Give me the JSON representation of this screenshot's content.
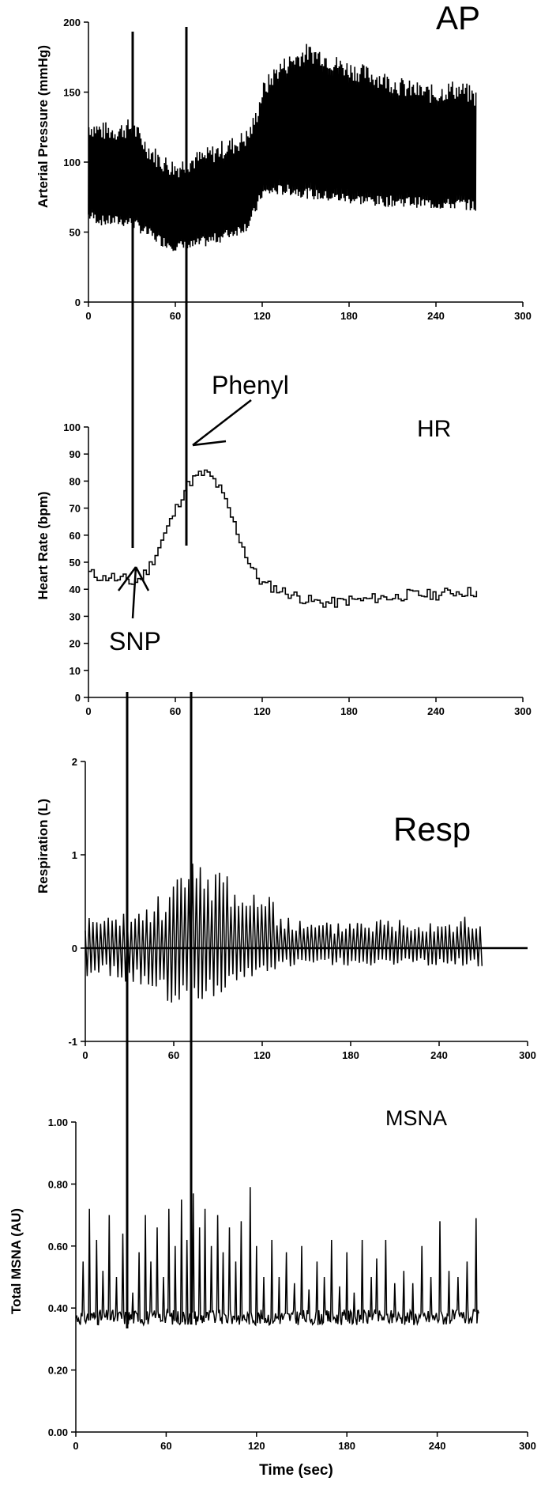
{
  "chart_data": [
    {
      "type": "line",
      "title": "AP",
      "ylabel": "Arterial Pressure (mmHg)",
      "xlabel": "",
      "xlim": [
        0,
        300
      ],
      "ylim": [
        0,
        200
      ],
      "x_ticks": [
        "0",
        "60",
        "120",
        "180",
        "240",
        "300"
      ],
      "y_ticks": [
        "0",
        "50",
        "100",
        "150",
        "200"
      ],
      "series": [
        {
          "style": "pulsatile-envelope",
          "x": [
            0,
            10,
            20,
            30,
            40,
            50,
            60,
            70,
            80,
            90,
            100,
            110,
            115,
            120,
            130,
            140,
            150,
            160,
            170,
            180,
            190,
            200,
            210,
            220,
            230,
            240,
            250,
            260,
            268
          ],
          "upper": [
            125,
            122,
            122,
            125,
            110,
            100,
            95,
            100,
            103,
            108,
            112,
            118,
            130,
            150,
            165,
            172,
            178,
            176,
            170,
            166,
            163,
            160,
            156,
            152,
            150,
            148,
            152,
            150,
            145
          ],
          "lower": [
            62,
            58,
            58,
            57,
            50,
            44,
            40,
            40,
            43,
            46,
            50,
            55,
            65,
            78,
            80,
            80,
            78,
            76,
            75,
            74,
            73,
            72,
            72,
            72,
            71,
            70,
            70,
            70,
            68
          ]
        }
      ]
    },
    {
      "type": "line",
      "title": "HR",
      "ylabel": "Heart Rate (bpm)",
      "xlabel": "",
      "xlim": [
        0,
        300
      ],
      "ylim": [
        0,
        100
      ],
      "x_ticks": [
        "0",
        "60",
        "120",
        "180",
        "240",
        "300"
      ],
      "y_ticks": [
        "0",
        "10",
        "20",
        "30",
        "40",
        "50",
        "60",
        "70",
        "80",
        "90",
        "100"
      ],
      "series": [
        {
          "style": "step-line",
          "x": [
            0,
            5,
            10,
            15,
            20,
            25,
            30,
            35,
            40,
            45,
            50,
            55,
            60,
            65,
            70,
            75,
            80,
            85,
            90,
            95,
            100,
            105,
            110,
            115,
            120,
            130,
            140,
            150,
            160,
            170,
            180,
            190,
            200,
            210,
            220,
            230,
            240,
            250,
            260,
            268
          ],
          "values": [
            46,
            45,
            44,
            45,
            43,
            44,
            42,
            44,
            47,
            52,
            58,
            64,
            70,
            76,
            80,
            82,
            83,
            81,
            77,
            71,
            64,
            57,
            50,
            45,
            42,
            40,
            38,
            36,
            35,
            35,
            36,
            36,
            37,
            37,
            38,
            38,
            38,
            39,
            39,
            39
          ]
        }
      ],
      "annotations": [
        "Phenyl",
        "SNP"
      ]
    },
    {
      "type": "line",
      "title": "Resp",
      "ylabel": "Respiration (L)",
      "xlabel": "",
      "xlim": [
        0,
        300
      ],
      "ylim": [
        -1,
        2
      ],
      "x_ticks": [
        "0",
        "60",
        "120",
        "180",
        "240",
        "300"
      ],
      "y_ticks": [
        "-1",
        "0",
        "1",
        "2"
      ],
      "series": [
        {
          "style": "oscillation-envelope",
          "x": [
            0,
            10,
            20,
            30,
            40,
            50,
            60,
            70,
            80,
            90,
            100,
            110,
            120,
            130,
            140,
            150,
            160,
            170,
            180,
            190,
            200,
            210,
            220,
            230,
            240,
            250,
            260,
            268
          ],
          "upper": [
            0.3,
            0.32,
            0.3,
            0.35,
            0.4,
            0.5,
            0.7,
            0.85,
            0.8,
            0.9,
            0.7,
            0.6,
            0.55,
            0.4,
            0.3,
            0.25,
            0.25,
            0.25,
            0.3,
            0.3,
            0.3,
            0.3,
            0.32,
            0.3,
            0.3,
            0.3,
            0.3,
            0.25
          ],
          "lower": [
            -0.28,
            -0.28,
            -0.3,
            -0.35,
            -0.4,
            -0.5,
            -0.58,
            -0.6,
            -0.5,
            -0.45,
            -0.35,
            -0.3,
            -0.25,
            -0.2,
            -0.18,
            -0.17,
            -0.17,
            -0.17,
            -0.18,
            -0.18,
            -0.18,
            -0.18,
            -0.18,
            -0.18,
            -0.18,
            -0.18,
            -0.18,
            -0.2
          ]
        }
      ]
    },
    {
      "type": "line",
      "title": "MSNA",
      "ylabel": "Total MSNA (AU)",
      "xlabel": "Time (sec)",
      "xlim": [
        0,
        300
      ],
      "ylim": [
        0,
        1
      ],
      "x_ticks": [
        "0",
        "60",
        "120",
        "180",
        "240",
        "300"
      ],
      "y_ticks": [
        "0.00",
        "0.20",
        "0.40",
        "0.60",
        "0.80",
        "1.00"
      ],
      "series": [
        {
          "style": "spike-train",
          "baseline": 0.37,
          "spikes": [
            [
              5,
              0.55
            ],
            [
              9,
              0.72
            ],
            [
              14,
              0.62
            ],
            [
              18,
              0.52
            ],
            [
              22,
              0.7
            ],
            [
              27,
              0.5
            ],
            [
              31,
              0.64
            ],
            [
              38,
              0.45
            ],
            [
              42,
              0.58
            ],
            [
              46,
              0.7
            ],
            [
              50,
              0.55
            ],
            [
              54,
              0.66
            ],
            [
              58,
              0.5
            ],
            [
              62,
              0.72
            ],
            [
              66,
              0.6
            ],
            [
              70,
              0.75
            ],
            [
              74,
              0.62
            ],
            [
              78,
              0.77
            ],
            [
              82,
              0.66
            ],
            [
              86,
              0.72
            ],
            [
              90,
              0.6
            ],
            [
              94,
              0.7
            ],
            [
              98,
              0.58
            ],
            [
              102,
              0.66
            ],
            [
              106,
              0.55
            ],
            [
              110,
              0.68
            ],
            [
              116,
              0.79
            ],
            [
              120,
              0.6
            ],
            [
              125,
              0.5
            ],
            [
              130,
              0.62
            ],
            [
              135,
              0.5
            ],
            [
              140,
              0.58
            ],
            [
              145,
              0.48
            ],
            [
              150,
              0.6
            ],
            [
              155,
              0.46
            ],
            [
              160,
              0.55
            ],
            [
              165,
              0.5
            ],
            [
              170,
              0.62
            ],
            [
              175,
              0.47
            ],
            [
              180,
              0.58
            ],
            [
              185,
              0.45
            ],
            [
              190,
              0.62
            ],
            [
              196,
              0.5
            ],
            [
              200,
              0.56
            ],
            [
              206,
              0.62
            ],
            [
              212,
              0.48
            ],
            [
              218,
              0.52
            ],
            [
              224,
              0.48
            ],
            [
              230,
              0.6
            ],
            [
              236,
              0.5
            ],
            [
              242,
              0.68
            ],
            [
              248,
              0.52
            ],
            [
              254,
              0.5
            ],
            [
              260,
              0.55
            ],
            [
              266,
              0.69
            ]
          ]
        }
      ]
    }
  ]
}
